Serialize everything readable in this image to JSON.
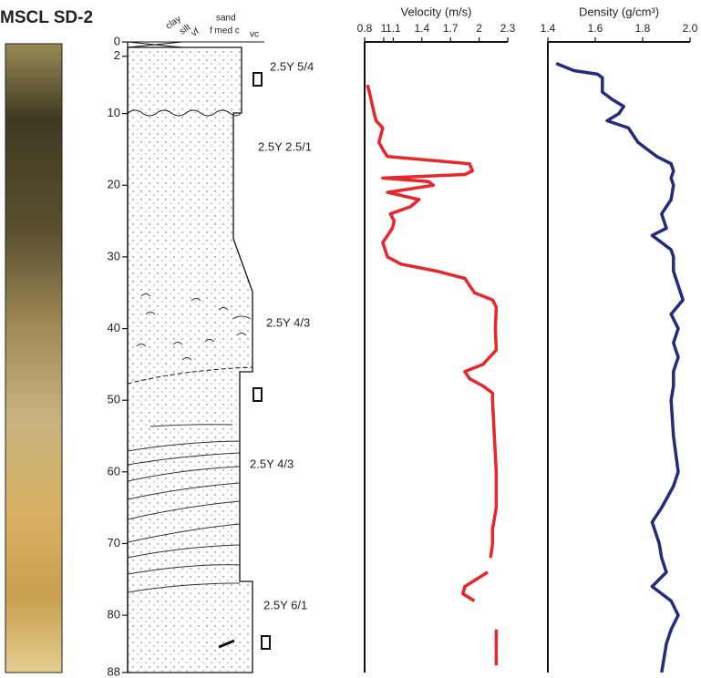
{
  "title": "MSCL SD-2",
  "lithology": {
    "header": [
      "clay",
      "silt",
      "vf",
      "sand",
      "f med c",
      "vc"
    ],
    "units": [
      "2.5Y 5/4",
      "2.5Y 2.5/1",
      "2.5Y 4/3",
      "2.5Y 4/3",
      "2.5Y 6/1"
    ]
  },
  "depth_axis": {
    "lim": [
      0,
      88
    ],
    "ticks": [
      0,
      2,
      10,
      20,
      30,
      40,
      50,
      60,
      70,
      80,
      88
    ]
  },
  "chart_data": [
    {
      "type": "line",
      "title": "Velocity (m/s)",
      "color": "#e8262b",
      "xlim": [
        0.8,
        2.3
      ],
      "xticks": [
        0.8,
        1,
        1.1,
        1.4,
        1.7,
        2,
        2.3
      ],
      "depth": [
        6,
        7,
        10,
        11,
        12,
        13,
        14,
        15,
        16,
        17,
        18,
        18.5,
        19,
        19.5,
        20,
        21,
        22,
        23,
        24,
        25,
        26,
        28,
        30,
        31,
        32,
        33,
        35,
        36,
        37,
        40,
        43,
        45,
        46,
        47,
        48,
        49,
        50,
        55,
        60,
        65,
        68,
        70,
        72,
        73,
        74,
        76,
        77,
        78,
        79,
        82,
        85,
        87
      ],
      "values": [
        0.83,
        0.85,
        0.9,
        0.92,
        0.99,
        0.97,
        0.95,
        0.99,
        1.04,
        1.9,
        1.93,
        1.85,
        0.99,
        1.47,
        1.52,
        1.04,
        1.37,
        1.28,
        1.07,
        1.11,
        1.09,
        0.99,
        1.04,
        1.18,
        1.56,
        1.85,
        1.95,
        2.14,
        2.18,
        2.17,
        2.18,
        2.04,
        1.85,
        1.9,
        2.04,
        2.14,
        2.14,
        2.16,
        2.18,
        2.18,
        2.14,
        2.14,
        2.12,
        null,
        2.09,
        1.85,
        1.83,
        1.95,
        null,
        2.18,
        2.18,
        2.18
      ]
    },
    {
      "type": "line",
      "title": "Density (g/cm³)",
      "color": "#262a7a",
      "xlim": [
        1.4,
        2.0
      ],
      "xticks": [
        1.4,
        1.6,
        1.8,
        {
          "value": 2,
          "label": "2.0"
        }
      ],
      "depth": [
        3,
        4,
        4.5,
        5,
        7,
        8,
        9,
        10,
        11,
        12,
        14,
        15,
        16,
        17,
        18,
        19,
        20,
        22,
        24,
        26,
        27,
        28,
        29,
        30,
        32,
        34,
        36,
        38,
        40,
        42,
        44,
        46,
        48,
        50,
        55,
        60,
        62,
        65,
        67,
        68,
        70,
        72,
        74,
        76,
        78,
        80,
        82,
        84,
        86,
        88
      ],
      "values": [
        1.435,
        1.51,
        1.61,
        1.63,
        1.63,
        1.67,
        1.72,
        1.7,
        1.65,
        1.74,
        1.78,
        1.82,
        1.86,
        1.92,
        1.93,
        1.92,
        1.93,
        1.92,
        1.88,
        1.9,
        1.84,
        1.88,
        1.92,
        1.93,
        1.93,
        1.95,
        1.97,
        1.92,
        1.95,
        1.93,
        1.95,
        1.93,
        1.93,
        1.92,
        1.93,
        1.95,
        1.93,
        1.88,
        1.84,
        1.85,
        1.87,
        1.88,
        1.9,
        1.84,
        1.92,
        1.95,
        1.92,
        1.9,
        1.89,
        1.88
      ]
    }
  ]
}
